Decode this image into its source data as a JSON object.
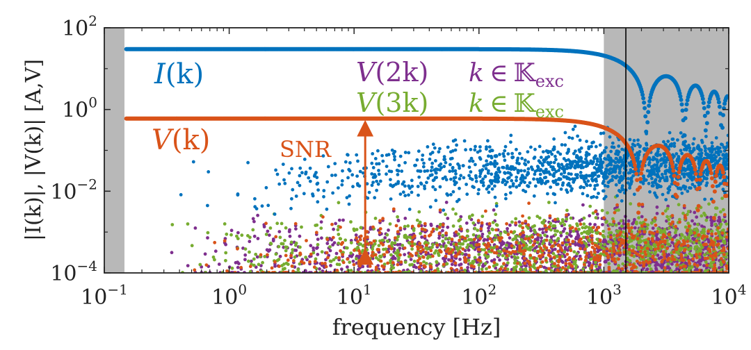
{
  "chart_data": {
    "type": "scatter",
    "xscale": "log",
    "yscale": "log",
    "xlim": [
      0.1,
      10000
    ],
    "ylim": [
      0.0001,
      100
    ],
    "xlabel": "frequency [Hz]",
    "ylabel": "|I(k)|, |V(k)| [A,V]",
    "x_ticks": [
      {
        "base": "10",
        "exp": "−1"
      },
      {
        "base": "10",
        "exp": "0"
      },
      {
        "base": "10",
        "exp": "1"
      },
      {
        "base": "10",
        "exp": "2"
      },
      {
        "base": "10",
        "exp": "3"
      },
      {
        "base": "10",
        "exp": "4"
      }
    ],
    "y_ticks": [
      {
        "base": "10",
        "exp": "−4"
      },
      {
        "base": "10",
        "exp": "−2"
      },
      {
        "base": "10",
        "exp": "0"
      },
      {
        "base": "10",
        "exp": "2"
      }
    ],
    "shaded_regions_hz": [
      [
        0.1,
        0.145
      ],
      [
        1000,
        10000
      ]
    ],
    "vertical_line_hz": 1500,
    "series": [
      {
        "name": "I(k)",
        "color": "#0072BD",
        "excited_level": 30,
        "rolloff_hz": 2200,
        "noise_center": 0.012
      },
      {
        "name": "V(k)",
        "color": "#D95319",
        "excited_level": 0.6,
        "rolloff_hz": 1900,
        "noise_center": 0.0002
      },
      {
        "name": "V(2k)",
        "color": "#7E2F8E",
        "noise_center": 0.00018
      },
      {
        "name": "V(3k)",
        "color": "#77AC30",
        "noise_center": 0.00025
      }
    ],
    "annotations": {
      "i_k": {
        "name": "I",
        "arg": "(k)"
      },
      "v_k": {
        "name": "V",
        "arg": "(k)"
      },
      "v_2k": {
        "name": "V",
        "arg": "(2k)"
      },
      "v_3k": {
        "name": "V",
        "arg": "(3k)"
      },
      "set_k": "k",
      "set_in": "∈",
      "set_K": "𝕂",
      "set_sub": "exc",
      "snr": "SNR",
      "snr_arrow_hz": 10,
      "snr_arrow_from": 0.0002,
      "snr_arrow_to": 0.6
    }
  }
}
